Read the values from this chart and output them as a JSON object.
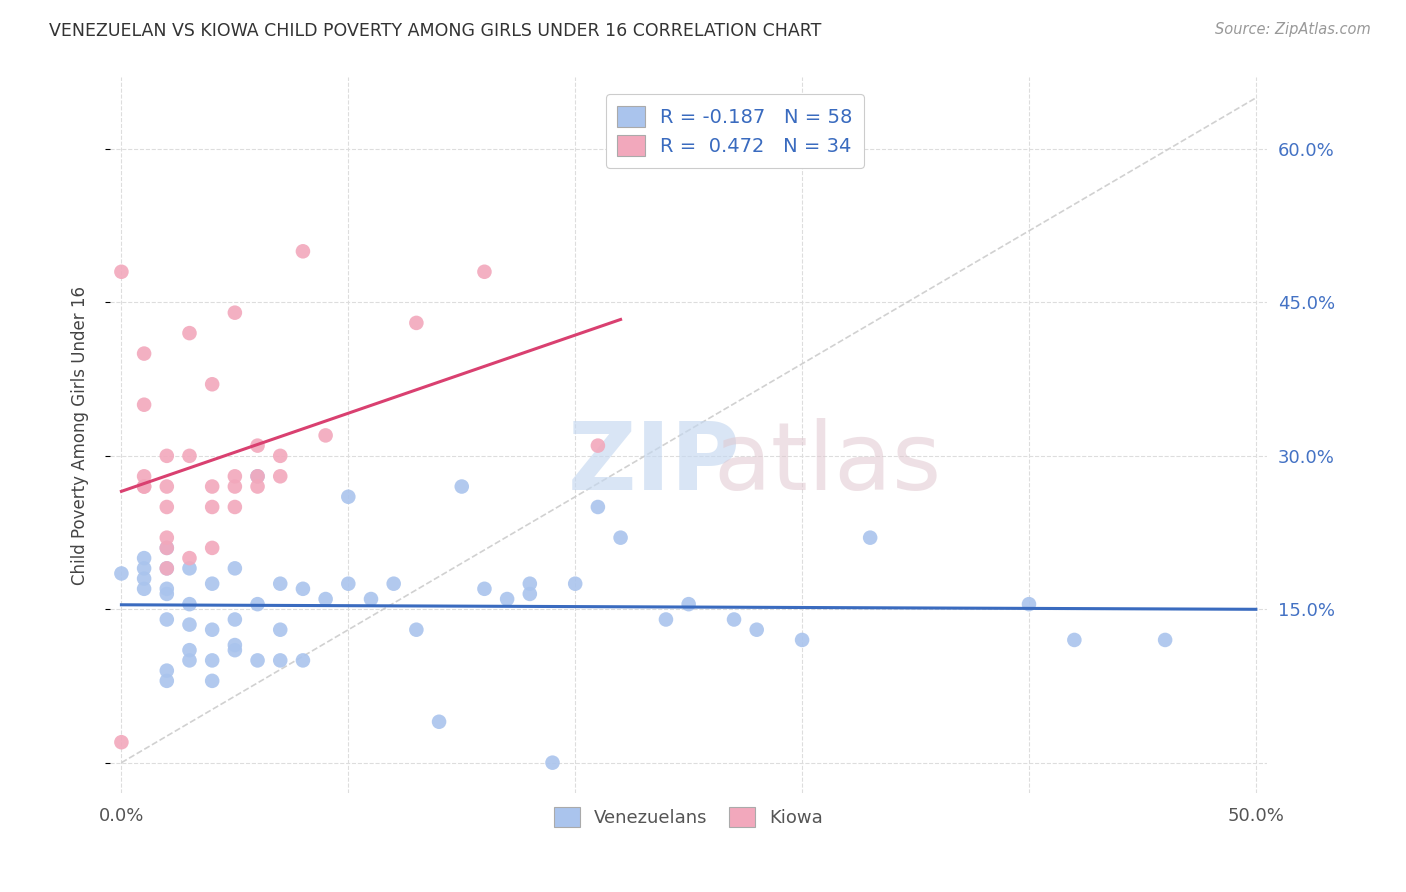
{
  "title": "VENEZUELAN VS KIOWA CHILD POVERTY AMONG GIRLS UNDER 16 CORRELATION CHART",
  "source": "Source: ZipAtlas.com",
  "ylabel": "Child Poverty Among Girls Under 16",
  "xlim": [
    -0.005,
    0.505
  ],
  "ylim": [
    -0.03,
    0.67
  ],
  "venezuelan_color": "#aac4ed",
  "kiowa_color": "#f2a8bc",
  "venezuelan_line_color": "#3a6bbf",
  "kiowa_line_color": "#d94070",
  "diagonal_color": "#cccccc",
  "venezuelan_R": -0.187,
  "venezuelan_N": 58,
  "kiowa_R": 0.472,
  "kiowa_N": 34,
  "legend_R_color": "#3a6bbf",
  "right_axis_color": "#4472c4",
  "watermark_zip_color": "#c5d8f0",
  "watermark_atlas_color": "#e0c8d0",
  "venezuelan_x": [
    0.0,
    0.01,
    0.01,
    0.01,
    0.01,
    0.02,
    0.02,
    0.02,
    0.02,
    0.02,
    0.02,
    0.02,
    0.03,
    0.03,
    0.03,
    0.03,
    0.03,
    0.04,
    0.04,
    0.04,
    0.04,
    0.05,
    0.05,
    0.05,
    0.05,
    0.06,
    0.06,
    0.06,
    0.07,
    0.07,
    0.07,
    0.08,
    0.08,
    0.09,
    0.1,
    0.1,
    0.11,
    0.12,
    0.13,
    0.14,
    0.15,
    0.16,
    0.17,
    0.18,
    0.18,
    0.19,
    0.2,
    0.21,
    0.22,
    0.24,
    0.25,
    0.27,
    0.28,
    0.3,
    0.33,
    0.4,
    0.42,
    0.46
  ],
  "venezuelan_y": [
    0.185,
    0.17,
    0.18,
    0.19,
    0.2,
    0.08,
    0.09,
    0.14,
    0.165,
    0.17,
    0.19,
    0.21,
    0.1,
    0.11,
    0.135,
    0.155,
    0.19,
    0.08,
    0.1,
    0.13,
    0.175,
    0.11,
    0.115,
    0.14,
    0.19,
    0.1,
    0.155,
    0.28,
    0.1,
    0.13,
    0.175,
    0.1,
    0.17,
    0.16,
    0.175,
    0.26,
    0.16,
    0.175,
    0.13,
    0.04,
    0.27,
    0.17,
    0.16,
    0.165,
    0.175,
    0.0,
    0.175,
    0.25,
    0.22,
    0.14,
    0.155,
    0.14,
    0.13,
    0.12,
    0.22,
    0.155,
    0.12,
    0.12
  ],
  "kiowa_x": [
    0.0,
    0.0,
    0.01,
    0.01,
    0.01,
    0.01,
    0.01,
    0.02,
    0.02,
    0.02,
    0.02,
    0.02,
    0.02,
    0.03,
    0.03,
    0.03,
    0.04,
    0.04,
    0.04,
    0.04,
    0.05,
    0.05,
    0.05,
    0.05,
    0.06,
    0.06,
    0.06,
    0.07,
    0.07,
    0.08,
    0.09,
    0.13,
    0.16,
    0.21
  ],
  "kiowa_y": [
    0.02,
    0.48,
    0.27,
    0.27,
    0.28,
    0.35,
    0.4,
    0.19,
    0.21,
    0.22,
    0.25,
    0.27,
    0.3,
    0.2,
    0.3,
    0.42,
    0.21,
    0.25,
    0.27,
    0.37,
    0.25,
    0.27,
    0.28,
    0.44,
    0.27,
    0.28,
    0.31,
    0.28,
    0.3,
    0.5,
    0.32,
    0.43,
    0.48,
    0.31
  ],
  "xticks": [
    0.0,
    0.1,
    0.2,
    0.3,
    0.4,
    0.5
  ],
  "xtick_labels": [
    "0.0%",
    "",
    "",
    "",
    "",
    "50.0%"
  ],
  "yticks": [
    0.0,
    0.15,
    0.3,
    0.45,
    0.6
  ],
  "ytick_right_labels": [
    "",
    "15.0%",
    "30.0%",
    "45.0%",
    "60.0%"
  ]
}
